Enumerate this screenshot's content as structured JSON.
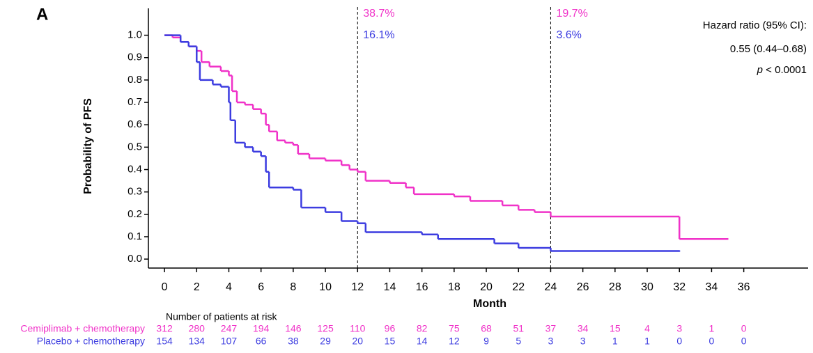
{
  "chart_data": {
    "type": "step",
    "panel_label": "A",
    "x_label": "Month",
    "y_label": "Probability of PFS",
    "xlim": [
      -1,
      40
    ],
    "ylim": [
      -0.04,
      1.12
    ],
    "xticks": [
      0,
      2,
      4,
      6,
      8,
      10,
      12,
      14,
      16,
      18,
      20,
      22,
      24,
      26,
      28,
      30,
      32,
      34,
      36
    ],
    "yticks": [
      {
        "value": 0,
        "label": "0.0"
      },
      0.1,
      0.2,
      0.3,
      0.4,
      0.5,
      0.6,
      0.7,
      0.8,
      0.9,
      {
        "value": 1,
        "label": "1.0"
      }
    ],
    "series": [
      {
        "name": "Cemiplimab + chemotherapy",
        "color": "#f032c8",
        "x": [
          0,
          0.5,
          1,
          1.5,
          2,
          2.3,
          2.8,
          3.5,
          4,
          4.2,
          4.5,
          5,
          5.5,
          6,
          6.3,
          6.5,
          7,
          7.5,
          8,
          8.3,
          9,
          10,
          11,
          11.5,
          12,
          12.5,
          14,
          15,
          15.5,
          18,
          19,
          21,
          22,
          23,
          24,
          32,
          35
        ],
        "values": [
          1.0,
          0.99,
          0.97,
          0.95,
          0.93,
          0.88,
          0.86,
          0.84,
          0.82,
          0.75,
          0.7,
          0.69,
          0.67,
          0.65,
          0.6,
          0.57,
          0.53,
          0.52,
          0.51,
          0.47,
          0.45,
          0.44,
          0.42,
          0.4,
          0.39,
          0.35,
          0.34,
          0.32,
          0.29,
          0.28,
          0.26,
          0.24,
          0.22,
          0.21,
          0.19,
          0.09,
          0.09
        ],
        "at_risk": [
          312,
          280,
          247,
          194,
          146,
          125,
          110,
          96,
          82,
          75,
          68,
          51,
          37,
          34,
          15,
          4,
          3,
          1,
          0
        ]
      },
      {
        "name": "Placebo + chemotherapy",
        "color": "#3c3ce0",
        "x": [
          0,
          1,
          1.5,
          2,
          2.2,
          3,
          3.5,
          4,
          4.1,
          4.4,
          5,
          5.5,
          6,
          6.3,
          6.5,
          8,
          8.5,
          10,
          11,
          12,
          12.5,
          16,
          17,
          20.5,
          22,
          24,
          32
        ],
        "values": [
          1.0,
          0.97,
          0.95,
          0.88,
          0.8,
          0.78,
          0.77,
          0.7,
          0.62,
          0.52,
          0.5,
          0.48,
          0.46,
          0.39,
          0.32,
          0.31,
          0.23,
          0.21,
          0.17,
          0.16,
          0.12,
          0.11,
          0.09,
          0.07,
          0.05,
          0.036,
          0.036
        ],
        "at_risk": [
          154,
          134,
          107,
          66,
          38,
          29,
          20,
          15,
          14,
          12,
          9,
          5,
          3,
          3,
          1,
          1,
          0,
          0,
          0
        ]
      }
    ],
    "reference_lines": [
      {
        "x": 12,
        "labels": [
          "38.7%",
          "16.1%"
        ]
      },
      {
        "x": 24,
        "labels": [
          "19.7%",
          "3.6%"
        ]
      }
    ],
    "stats": {
      "lines": [
        "Hazard ratio (95% CI):",
        "0.55 (0.44–0.68)"
      ],
      "p_symbol": "p",
      "p_text": " < 0.0001"
    },
    "risk_table_title": "Number of patients at risk"
  }
}
